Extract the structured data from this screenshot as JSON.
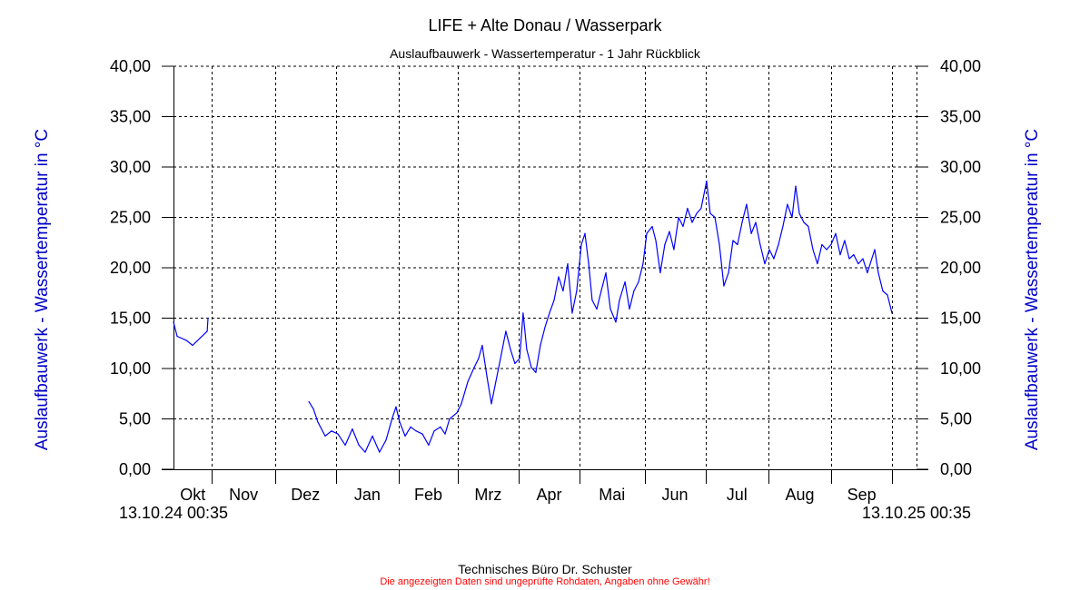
{
  "header": {
    "title": "LIFE + Alte Donau / Wasserpark",
    "subtitle": "Auslaufbauwerk - Wassertemperatur - 1 Jahr Rückblick"
  },
  "footer": {
    "company": "Technisches Büro Dr. Schuster",
    "disclaimer": "Die angezeigten Daten sind ungeprüfte Rohdaten, Angaben ohne Gewähr!"
  },
  "chart_data": {
    "type": "line",
    "title": "LIFE + Alte Donau / Wasserpark",
    "subtitle": "Auslaufbauwerk - Wassertemperatur - 1 Jahr Rückblick",
    "ylabel": "Auslaufbauwerk - Wassertemperatur in °C",
    "ylabel_right": "Auslaufbauwerk - Wassertemperatur in °C",
    "xlabel": "",
    "start_label": "13.10.24 00:35",
    "end_label": "13.10.25 00:35",
    "x_unit": "days since 13.10.24 00:35",
    "xlim": [
      0,
      366
    ],
    "ylim": [
      0,
      40
    ],
    "grid": true,
    "yticks": [
      0,
      5,
      10,
      15,
      20,
      25,
      30,
      35,
      40
    ],
    "ytick_labels": [
      "0,00",
      "5,00",
      "10,00",
      "15,00",
      "20,00",
      "25,00",
      "30,00",
      "35,00",
      "40,00"
    ],
    "month_boundaries": [
      19,
      50,
      80,
      111,
      140,
      170,
      200,
      232,
      262,
      293,
      324,
      354
    ],
    "months": [
      {
        "label": "Okt",
        "from": 0,
        "to": 19
      },
      {
        "label": "Nov",
        "from": 19,
        "to": 50
      },
      {
        "label": "Dez",
        "from": 50,
        "to": 80
      },
      {
        "label": "Jan",
        "from": 80,
        "to": 111
      },
      {
        "label": "Feb",
        "from": 111,
        "to": 140
      },
      {
        "label": "Mrz",
        "from": 140,
        "to": 170
      },
      {
        "label": "Apr",
        "from": 170,
        "to": 200
      },
      {
        "label": "Mai",
        "from": 200,
        "to": 232
      },
      {
        "label": "Jun",
        "from": 232,
        "to": 262
      },
      {
        "label": "Jul",
        "from": 262,
        "to": 293
      },
      {
        "label": "Aug",
        "from": 293,
        "to": 324
      },
      {
        "label": "Sep",
        "from": 324,
        "to": 354
      }
    ],
    "line_color": "#0000ff",
    "series": [
      {
        "name": "Wassertemperatur °C (segment 1)",
        "x": [
          0,
          1.8,
          6.3,
          9.4,
          13,
          16.6,
          17
        ],
        "y": [
          14.6,
          13.2,
          12.8,
          12.3,
          13.0,
          13.7,
          15.0
        ]
      },
      {
        "name": "Wassertemperatur °C (segment 2)",
        "x": [
          66.7,
          68.9,
          71.1,
          74.7,
          77.8,
          81,
          84.6,
          88.1,
          91.3,
          94.4,
          98,
          101.5,
          104.7,
          107.8,
          109.6,
          111.4,
          114.1,
          116.8,
          119.5,
          122.6,
          125.7,
          128.4,
          131.5,
          133.8,
          136,
          139.6,
          141.8,
          145,
          148.1,
          150.3,
          152.1,
          154.4,
          156.6,
          158.8,
          161.5,
          163.7,
          166,
          168.2,
          170.5,
          172.2,
          174,
          176.3,
          178.5,
          180.7,
          183,
          185.2,
          187.5,
          189.7,
          191.9,
          194.2,
          196.4,
          198.6,
          200.9,
          202.7,
          204.5,
          206.2,
          208.5,
          210.7,
          213,
          215.2,
          217.9,
          219.7,
          222.4,
          224.6,
          226.8,
          229.1,
          231.3,
          233.1,
          235.8,
          237.6,
          239.8,
          242,
          244.3,
          246.5,
          248.8,
          251,
          253.2,
          255.5,
          257.7,
          259.9,
          262.6,
          264.4,
          266.7,
          268.9,
          271.1,
          273.4,
          275.6,
          277.8,
          280.1,
          282.3,
          284.6,
          286.8,
          289,
          291.3,
          293.5,
          295.7,
          298,
          300.2,
          302.4,
          304.7,
          306.5,
          308.3,
          310.5,
          312.7,
          315,
          317.2,
          319.4,
          321.7,
          323.9,
          326.2,
          328.4,
          330.6,
          332.9,
          335.1,
          337.3,
          339.6,
          341.8,
          344,
          345.4,
          347.2,
          349.4,
          351.7,
          353.9
        ],
        "y": [
          6.7,
          6.0,
          4.7,
          3.3,
          3.8,
          3.5,
          2.4,
          4.0,
          2.4,
          1.7,
          3.3,
          1.7,
          2.9,
          5.1,
          6.2,
          4.7,
          3.3,
          4.2,
          3.8,
          3.5,
          2.4,
          3.8,
          4.2,
          3.5,
          5.0,
          5.6,
          6.5,
          8.7,
          10.1,
          11.0,
          12.3,
          9.2,
          6.5,
          8.7,
          11.4,
          13.7,
          11.9,
          10.5,
          11.0,
          15.5,
          11.9,
          10.1,
          9.6,
          12.3,
          14.1,
          15.5,
          16.8,
          19.1,
          17.7,
          20.4,
          15.5,
          17.7,
          22.3,
          23.4,
          20.4,
          16.8,
          15.9,
          17.7,
          19.5,
          15.9,
          14.6,
          16.8,
          18.6,
          15.9,
          17.7,
          18.6,
          20.4,
          23.4,
          24.1,
          22.7,
          19.5,
          22.3,
          23.6,
          21.8,
          25.0,
          24.1,
          25.9,
          24.5,
          25.4,
          25.9,
          28.6,
          25.4,
          25.0,
          22.3,
          18.2,
          19.5,
          22.7,
          22.3,
          24.5,
          26.3,
          23.4,
          24.5,
          22.3,
          20.4,
          21.8,
          20.9,
          22.3,
          24.1,
          26.3,
          25.0,
          28.1,
          25.4,
          24.5,
          24.1,
          21.8,
          20.4,
          22.3,
          21.8,
          22.3,
          23.4,
          21.3,
          22.7,
          20.9,
          21.3,
          20.4,
          20.9,
          19.5,
          20.9,
          21.8,
          19.5,
          17.7,
          17.3,
          15.5
        ]
      }
    ]
  }
}
